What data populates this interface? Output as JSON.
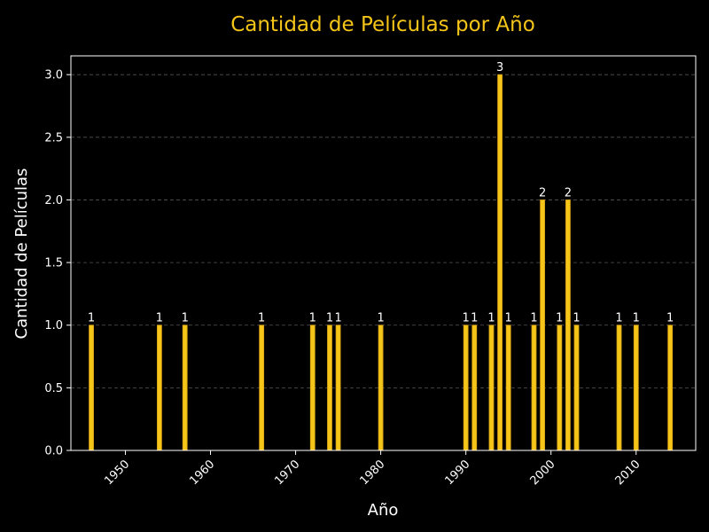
{
  "chart_data": {
    "type": "bar",
    "title": "Cantidad de Películas por Año",
    "xlabel": "Año",
    "ylabel": "Cantidad de Películas",
    "x": [
      1946,
      1954,
      1957,
      1966,
      1972,
      1974,
      1975,
      1980,
      1990,
      1991,
      1993,
      1994,
      1995,
      1998,
      1999,
      2001,
      2002,
      2003,
      2008,
      2010,
      2014
    ],
    "values": [
      1,
      1,
      1,
      1,
      1,
      1,
      1,
      1,
      1,
      1,
      1,
      3,
      1,
      1,
      2,
      1,
      2,
      1,
      1,
      1,
      1
    ],
    "xlim": [
      1943.6,
      2017
    ],
    "ylim": [
      0,
      3.15
    ],
    "x_ticks": [
      1950,
      1960,
      1970,
      1980,
      1990,
      2000,
      2010
    ],
    "y_ticks": [
      "0.0",
      "0.5",
      "1.0",
      "1.5",
      "2.0",
      "2.5",
      "3.0"
    ],
    "grid": "y-dashed",
    "colors": {
      "background": "#000000",
      "bar_fill": "#f5c518",
      "bar_edge": "#d4a017",
      "title": "#f5c518",
      "text": "#ffffff",
      "grid": "#555555"
    }
  }
}
